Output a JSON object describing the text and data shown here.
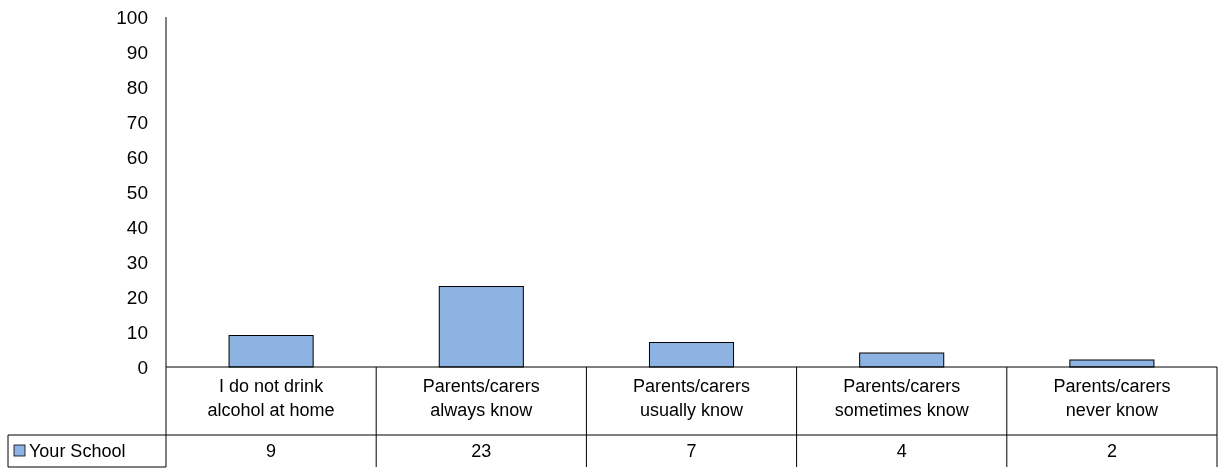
{
  "chart_data": {
    "type": "bar",
    "categories": [
      "I do not drink alcohol at home",
      "Parents/carers always know",
      "Parents/carers usually know",
      "Parents/carers sometimes know",
      "Parents/carers never know"
    ],
    "series": [
      {
        "name": "Your School",
        "color": "#8db3e2",
        "values": [
          9,
          23,
          7,
          4,
          2
        ]
      }
    ],
    "ylim": [
      0,
      100
    ],
    "yticks": [
      0,
      10,
      20,
      30,
      40,
      50,
      60,
      70,
      80,
      90,
      100
    ],
    "data_labels": true,
    "legend": "bottom",
    "grid": false
  }
}
